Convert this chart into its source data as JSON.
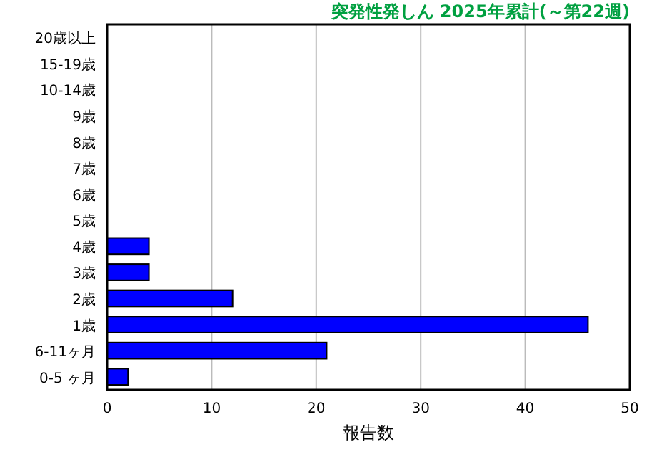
{
  "chart_data": {
    "type": "bar",
    "orientation": "horizontal",
    "title": "突発性発しん 2025年累計(～第22週)",
    "xlabel": "報告数",
    "categories": [
      "20歳以上",
      "15-19歳",
      "10-14歳",
      "9歳",
      "8歳",
      "7歳",
      "6歳",
      "5歳",
      "4歳",
      "3歳",
      "2歳",
      "1歳",
      "6-11ヶ月",
      "0-5 ヶ月"
    ],
    "values": [
      0,
      0,
      0,
      0,
      0,
      0,
      0,
      0,
      4,
      4,
      12,
      46,
      21,
      2
    ],
    "color": "#0000ff",
    "xlim": [
      0,
      50
    ],
    "xticks": [
      0,
      10,
      20,
      30,
      40,
      50
    ],
    "grid": "x"
  }
}
